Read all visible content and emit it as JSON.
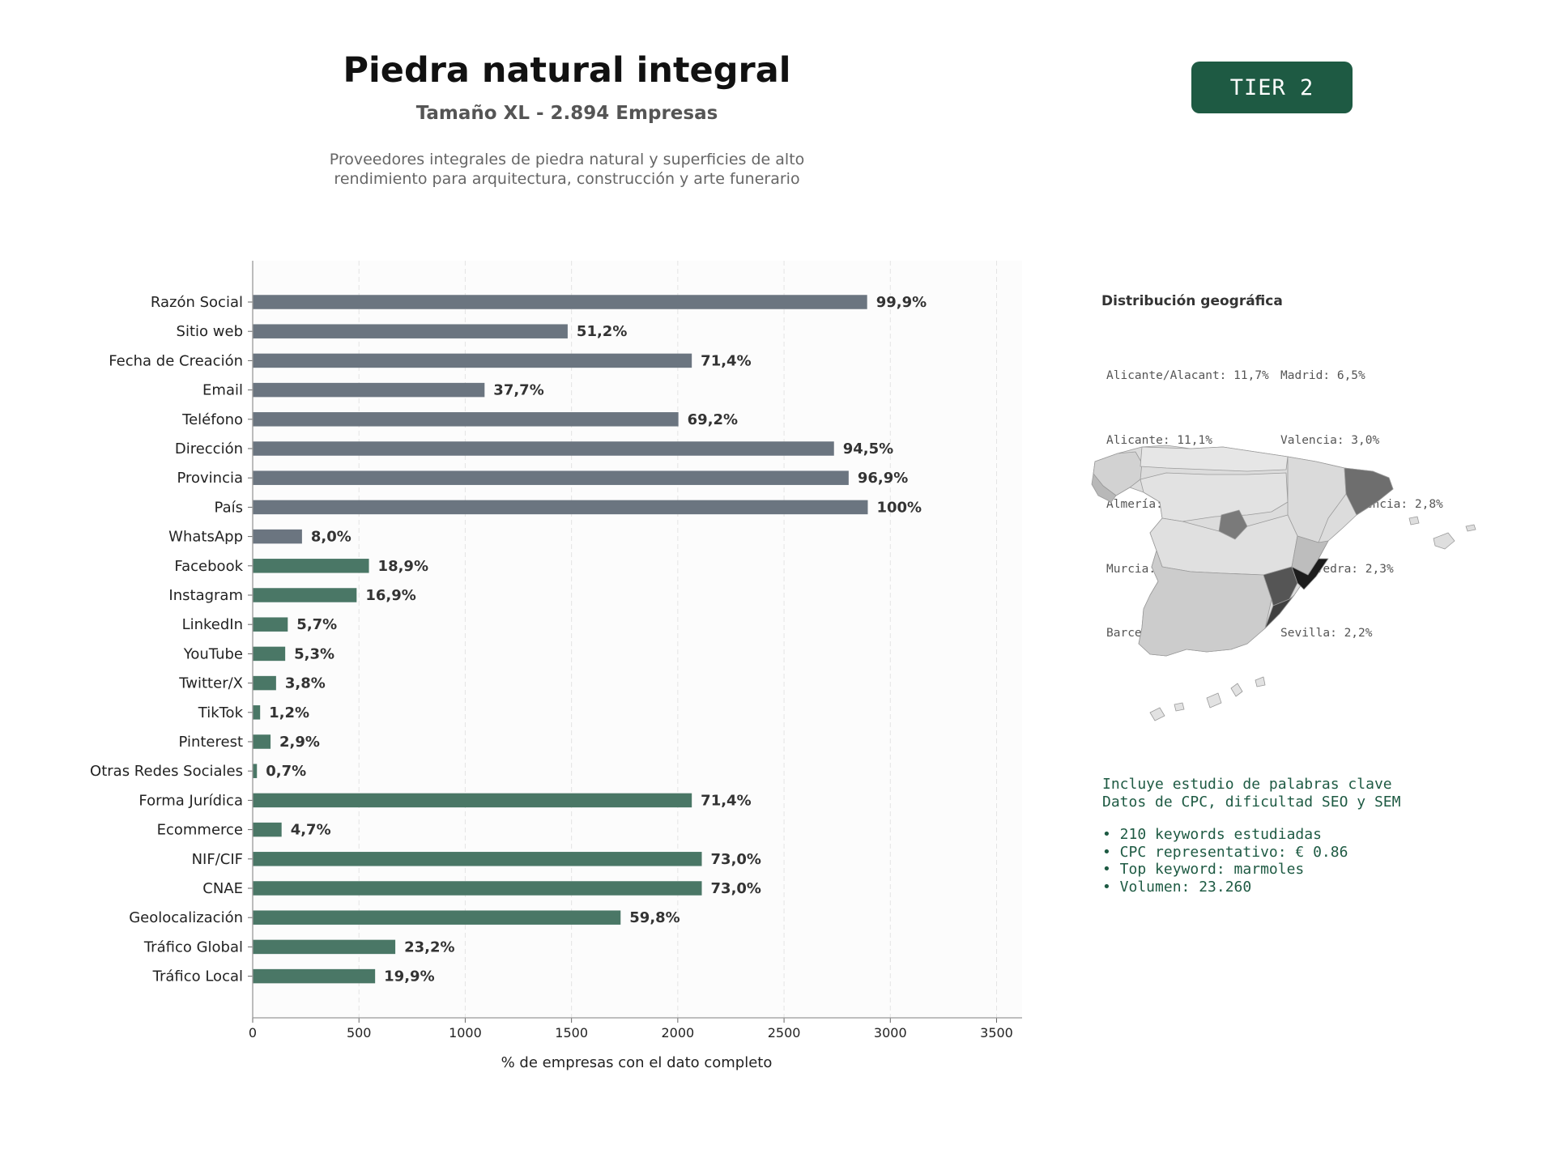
{
  "header": {
    "title": "Piedra natural integral",
    "subtitle": "Tamaño XL - 2.894 Empresas",
    "description_line1": "Proveedores integrales de piedra natural y superficies de alto",
    "description_line2": "rendimiento para arquitectura, construcción y arte funerario",
    "tier": "TIER 2"
  },
  "colors": {
    "contact_bar": "#6b7580",
    "social_bar": "#4a7766",
    "accent": "#1e5a43"
  },
  "chart_data": {
    "type": "bar",
    "orientation": "horizontal",
    "xlabel": "% de empresas con el dato completo",
    "xlim": [
      0,
      3620
    ],
    "xticks": [
      0,
      500,
      1000,
      1500,
      2000,
      2500,
      3000,
      3500
    ],
    "grid": "vertical dashed",
    "categories": [
      "Razón Social",
      "Sitio web",
      "Fecha de Creación",
      "Email",
      "Teléfono",
      "Dirección",
      "Provincia",
      "País",
      "WhatsApp",
      "Facebook",
      "Instagram",
      "LinkedIn",
      "YouTube",
      "Twitter/X",
      "TikTok",
      "Pinterest",
      "Otras Redes Sociales",
      "Forma Jurídica",
      "Ecommerce",
      "NIF/CIF",
      "CNAE",
      "Geolocalización",
      "Tráfico Global",
      "Tráfico Local"
    ],
    "values": [
      2891,
      1482,
      2066,
      1091,
      2003,
      2735,
      2804,
      2894,
      232,
      547,
      489,
      165,
      153,
      110,
      35,
      84,
      20,
      2066,
      136,
      2113,
      2113,
      1731,
      671,
      576
    ],
    "labels": [
      "99,9%",
      "51,2%",
      "71,4%",
      "37,7%",
      "69,2%",
      "94,5%",
      "96,9%",
      "100%",
      "8,0%",
      "18,9%",
      "16,9%",
      "5,7%",
      "5,3%",
      "3,8%",
      "1,2%",
      "2,9%",
      "0,7%",
      "71,4%",
      "4,7%",
      "73,0%",
      "73,0%",
      "59,8%",
      "23,2%",
      "19,9%"
    ],
    "groups": [
      "contact",
      "contact",
      "contact",
      "contact",
      "contact",
      "contact",
      "contact",
      "contact",
      "contact",
      "social",
      "social",
      "social",
      "social",
      "social",
      "social",
      "social",
      "social",
      "social",
      "social",
      "social",
      "social",
      "social",
      "social",
      "social"
    ]
  },
  "geo": {
    "title": "Distribución geográfica",
    "col1": [
      "Alicante/Alacant: 11,7%",
      "Alicante: 11,1%",
      "Almería: 9,3%",
      "Murcia: 7,0%",
      "Barcelona: 6,7%"
    ],
    "col2": [
      "Madrid: 6,5%",
      "Valencia: 3,0%",
      "Valencia/València: 2,8%",
      "Pontevedra: 2,3%",
      "Sevilla: 2,2%"
    ]
  },
  "keywords": {
    "line1": "Incluye estudio de palabras clave",
    "line2": "Datos de CPC, dificultad SEO y SEM",
    "bullets": [
      "• 210 keywords estudiadas",
      "• CPC representativo: € 0.86",
      "• Top keyword: marmoles",
      "• Volumen: 23.260"
    ]
  }
}
